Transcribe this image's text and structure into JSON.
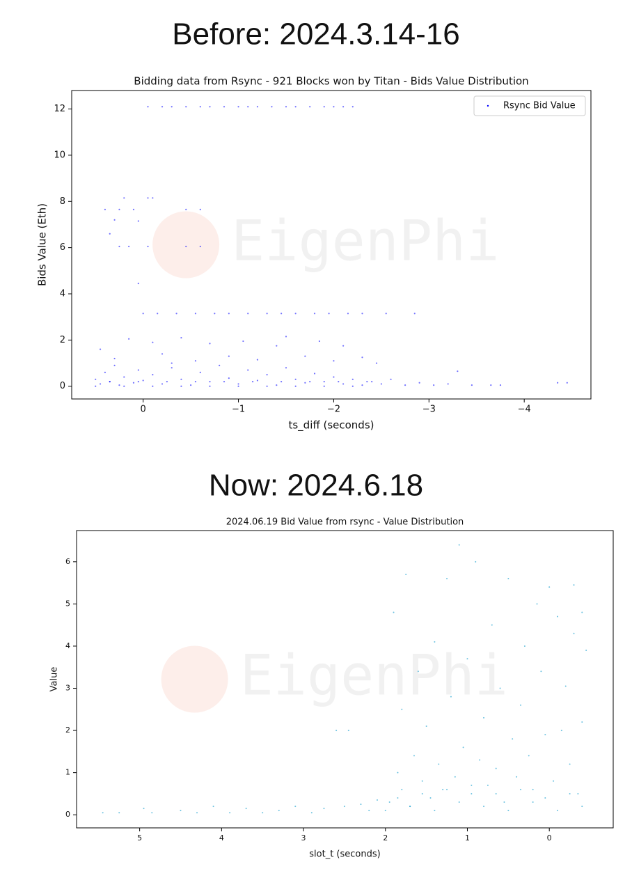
{
  "chart_data": [
    {
      "type": "scatter",
      "heading": "Before: 2024.3.14-16",
      "title": "Bidding data from Rsync - 921 Blocks won by Titan -  Bids Value Distribution",
      "x_label": "ts_diff (seconds)",
      "y_label": "Bids Value (Eth)",
      "watermark": "EigenPhi",
      "xlim": [
        0.75,
        -4.7
      ],
      "ylim": [
        -0.55,
        12.8
      ],
      "xticks": [
        0,
        {
          "value": -1,
          "label": "−1"
        },
        {
          "value": -2,
          "label": "−2"
        },
        {
          "value": -3,
          "label": "−3"
        },
        {
          "value": -4,
          "label": "−4"
        }
      ],
      "yticks": [
        0,
        2,
        4,
        6,
        8,
        10,
        12
      ],
      "legend": "upper right",
      "series": [
        {
          "name": "Rsync Bid Value",
          "color": "#0000ff",
          "x": [
            -0.05,
            -0.2,
            -0.3,
            -0.45,
            -0.6,
            -0.7,
            -0.85,
            -1.0,
            -1.1,
            -1.2,
            -1.35,
            -1.5,
            -1.6,
            -1.75,
            -1.9,
            -2.0,
            -2.1,
            -2.2,
            0.4,
            0.25,
            0.1,
            0.2,
            -0.05,
            0.05,
            0.35,
            0.3,
            0.25,
            0.15,
            -0.05,
            -0.45,
            -0.6,
            -0.45,
            -0.6,
            -0.1,
            0.05,
            0,
            -0.15,
            -0.35,
            -0.55,
            -0.75,
            -0.9,
            -1.1,
            -1.3,
            -1.45,
            -1.6,
            -1.8,
            -1.95,
            -2.15,
            -2.3,
            -2.55,
            -2.85,
            0.45,
            0.3,
            0.15,
            -0.1,
            -0.2,
            -0.4,
            -0.55,
            -0.7,
            -0.9,
            -1.05,
            -1.2,
            -1.4,
            -1.5,
            -1.7,
            -1.85,
            -2.0,
            -2.1,
            -2.3,
            -2.45,
            -0.3,
            0.5,
            0.45,
            0.4,
            0.35,
            0.3,
            0.25,
            0.2,
            0.1,
            0.05,
            0,
            -0.1,
            -0.2,
            -0.3,
            -0.4,
            -0.5,
            -0.6,
            -0.7,
            -0.8,
            -0.9,
            -1.0,
            -1.1,
            -1.2,
            -1.3,
            -1.4,
            -1.5,
            -1.6,
            -1.7,
            -1.8,
            -1.9,
            -2.0,
            -2.1,
            -2.2,
            -2.3,
            -2.4,
            -2.5,
            -2.6,
            -2.75,
            -2.9,
            -3.05,
            -3.2,
            -3.3,
            -3.45,
            -3.65,
            -3.75,
            -4.35,
            -4.45,
            0.5,
            0.35,
            0.2,
            0.05,
            -0.1,
            -0.25,
            -0.4,
            -0.55,
            -0.7,
            -0.85,
            -1.0,
            -1.15,
            -1.3,
            -1.45,
            -1.6,
            -1.75,
            -1.9,
            -2.05,
            -2.2,
            -2.35
          ],
          "values": [
            12.1,
            12.1,
            12.1,
            12.1,
            12.1,
            12.1,
            12.1,
            12.1,
            12.1,
            12.1,
            12.1,
            12.1,
            12.1,
            12.1,
            12.1,
            12.1,
            12.1,
            12.1,
            7.65,
            7.65,
            7.65,
            8.15,
            8.15,
            7.15,
            6.6,
            7.2,
            6.05,
            6.05,
            6.05,
            6.05,
            6.05,
            7.65,
            7.65,
            8.15,
            4.45,
            3.15,
            3.15,
            3.15,
            3.15,
            3.15,
            3.15,
            3.15,
            3.15,
            3.15,
            3.15,
            3.15,
            3.15,
            3.15,
            3.15,
            3.15,
            3.15,
            1.6,
            1.2,
            2.05,
            1.9,
            1.4,
            2.1,
            1.1,
            1.85,
            1.3,
            1.95,
            1.15,
            1.75,
            2.15,
            1.3,
            1.95,
            1.1,
            1.75,
            1.25,
            1.0,
            1.0,
            0.3,
            0.1,
            0.6,
            0.2,
            0.9,
            0.05,
            0.4,
            0.15,
            0.7,
            0.25,
            0.5,
            0.1,
            0.8,
            0.3,
            0.05,
            0.6,
            0.2,
            0.9,
            0.35,
            0.1,
            0.7,
            0.25,
            0.5,
            0.05,
            0.8,
            0.3,
            0.15,
            0.55,
            0.2,
            0.4,
            0.1,
            0.3,
            0.05,
            0.2,
            0.1,
            0.3,
            0.05,
            0.15,
            0.05,
            0.1,
            0.65,
            0.05,
            0.05,
            0.05,
            0.15,
            0.15,
            0.0,
            0.2,
            0.0,
            0.2,
            0.0,
            0.2,
            0.0,
            0.2,
            0.0,
            0.2,
            0.0,
            0.2,
            0.0,
            0.2,
            0.0,
            0.2,
            0.0,
            0.2,
            0.0,
            0.2
          ]
        }
      ]
    },
    {
      "type": "scatter",
      "heading": "Now: 2024.6.18",
      "title": "2024.06.19 Bid Value from rsync - Value Distribution",
      "x_label": "slot_t (seconds)",
      "y_label": "Value",
      "watermark": "EigenPhi",
      "xlim": [
        5.77,
        -0.78
      ],
      "ylim": [
        -0.31,
        6.74
      ],
      "xticks": [
        5,
        4,
        3,
        2,
        1,
        0
      ],
      "yticks": [
        0,
        1,
        2,
        3,
        4,
        5,
        6
      ],
      "series": [
        {
          "color": "#0a9acc",
          "x": [
            5.45,
            5.25,
            4.95,
            4.85,
            4.5,
            4.3,
            4.1,
            3.9,
            3.7,
            3.5,
            3.3,
            3.1,
            2.9,
            2.75,
            2.6,
            2.45,
            2.5,
            2.3,
            2.2,
            2.1,
            1.95,
            1.9,
            1.85,
            1.8,
            1.8,
            1.75,
            1.7,
            1.65,
            1.6,
            1.55,
            1.5,
            1.45,
            1.4,
            1.35,
            1.3,
            1.25,
            1.2,
            1.15,
            1.1,
            1.05,
            1.0,
            0.95,
            0.9,
            0.85,
            0.8,
            0.75,
            0.7,
            0.65,
            0.6,
            0.55,
            0.5,
            0.45,
            0.4,
            0.35,
            0.3,
            0.25,
            0.2,
            0.15,
            0.1,
            0.05,
            0,
            -0.05,
            -0.1,
            -0.15,
            -0.2,
            -0.25,
            -0.3,
            -0.35,
            -0.4,
            -0.45,
            -0.4,
            -0.3,
            2.0,
            1.85,
            1.7,
            1.55,
            1.4,
            1.25,
            1.1,
            0.95,
            0.8,
            0.65,
            0.5,
            0.35,
            0.2,
            0.05,
            -0.1,
            -0.25,
            -0.4
          ],
          "values": [
            0.05,
            0.05,
            0.15,
            0.05,
            0.1,
            0.05,
            0.2,
            0.05,
            0.15,
            0.05,
            0.1,
            0.2,
            0.05,
            0.15,
            2.0,
            2.0,
            0.2,
            0.25,
            0.1,
            0.35,
            0.3,
            4.8,
            1.0,
            0.6,
            2.5,
            5.7,
            0.2,
            1.4,
            3.4,
            0.8,
            2.1,
            0.4,
            4.1,
            1.2,
            0.6,
            5.6,
            2.8,
            0.9,
            6.4,
            1.6,
            3.7,
            0.5,
            6.0,
            1.3,
            2.3,
            0.7,
            4.5,
            1.1,
            3.0,
            0.3,
            5.6,
            1.8,
            0.9,
            2.6,
            4.0,
            1.4,
            0.6,
            5.0,
            3.4,
            1.9,
            5.4,
            0.8,
            4.7,
            2.0,
            3.05,
            1.2,
            4.3,
            0.5,
            2.2,
            3.9,
            4.8,
            5.45,
            0.1,
            0.4,
            0.2,
            0.5,
            0.1,
            0.6,
            0.3,
            0.7,
            0.2,
            0.5,
            0.1,
            0.6,
            0.3,
            0.4,
            0.1,
            0.5,
            0.2
          ]
        }
      ]
    }
  ]
}
